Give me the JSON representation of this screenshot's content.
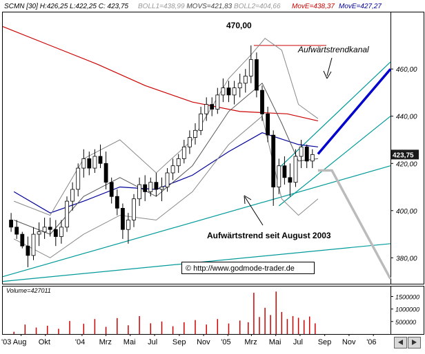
{
  "chart_data": {
    "type": "line",
    "header": {
      "symbol": "SCMN [30]",
      "stats": "H:426,25 L:422,25 C: 423,75",
      "boll1": "BOLL1=438,99",
      "movs": "MOVS=421,83",
      "boll2": "BOLL2=404,66",
      "move_red": "MovE=438,37",
      "move_blue": "MovE=427,27"
    },
    "price_axis": {
      "ticks": [
        380,
        400,
        420,
        440,
        460
      ],
      "labels": [
        "380,00",
        "400,00",
        "420,00",
        "440,00",
        "460,00"
      ],
      "range": [
        369,
        484
      ]
    },
    "last_price_label": "423,75",
    "x_axis": {
      "labels": [
        "'03 Aug",
        "Okt",
        "'04",
        "Mrz",
        "Mai",
        "Jul",
        "Sep",
        "Nov",
        "'05",
        "Mrz",
        "Mai",
        "Jul",
        "Sep",
        "Nov",
        "'06"
      ],
      "range": [
        "2003-06-16",
        "2006-02-13"
      ]
    },
    "volume": {
      "label": "Volume=427011",
      "ticks": [
        "1500000",
        "1000000",
        "500000"
      ],
      "range": [
        0,
        1900000
      ]
    },
    "annotations": {
      "high": "470,00",
      "channel": "Aufwärtstrendkanal",
      "trend": "Aufwärtstrend seit August 2003",
      "copyright": "© http://www.godmode-trader.de"
    },
    "colors": {
      "candle_up": "#ffffff",
      "candle_down": "#000000",
      "move_red": "#cc0000",
      "move_blue": "#000099",
      "bollinger": "#888888",
      "trendline": "#009999",
      "forecast_up": "#0000cc",
      "forecast_down": "#bbbbbb",
      "volume": "#cc0000",
      "high_line": "#cc0000"
    },
    "series": [
      {
        "name": "SCMN [30]",
        "type": "candlestick",
        "points": [
          [
            "2003-07-07",
            396,
            399,
            391,
            393
          ],
          [
            "2003-07-21",
            393,
            396,
            388,
            390
          ],
          [
            "2003-08-04",
            390,
            391,
            384,
            385
          ],
          [
            "2003-08-18",
            385,
            389,
            376,
            381
          ],
          [
            "2003-09-01",
            381,
            393,
            379,
            390
          ],
          [
            "2003-09-15",
            390,
            395,
            385,
            391
          ],
          [
            "2003-09-29",
            391,
            397,
            388,
            393
          ],
          [
            "2003-10-13",
            393,
            397,
            389,
            392
          ],
          [
            "2003-10-27",
            392,
            396,
            385,
            389
          ],
          [
            "2003-11-10",
            389,
            396,
            386,
            393
          ],
          [
            "2003-11-24",
            393,
            406,
            391,
            404
          ],
          [
            "2003-12-08",
            404,
            412,
            400,
            409
          ],
          [
            "2003-12-22",
            409,
            420,
            406,
            418
          ],
          [
            "2004-01-05",
            418,
            426,
            414,
            422
          ],
          [
            "2004-01-19",
            422,
            425,
            415,
            418
          ],
          [
            "2004-02-02",
            418,
            426,
            416,
            423
          ],
          [
            "2004-02-16",
            423,
            428,
            418,
            420
          ],
          [
            "2004-03-01",
            420,
            425,
            409,
            412
          ],
          [
            "2004-03-15",
            412,
            414,
            403,
            406
          ],
          [
            "2004-03-29",
            406,
            409,
            398,
            401
          ],
          [
            "2004-04-12",
            401,
            403,
            388,
            392
          ],
          [
            "2004-04-26",
            392,
            399,
            386,
            396
          ],
          [
            "2004-05-10",
            396,
            407,
            393,
            405
          ],
          [
            "2004-05-24",
            405,
            414,
            402,
            411
          ],
          [
            "2004-06-07",
            411,
            415,
            404,
            408
          ],
          [
            "2004-06-21",
            408,
            414,
            406,
            412
          ],
          [
            "2004-07-05",
            412,
            416,
            406,
            409
          ],
          [
            "2004-07-19",
            409,
            414,
            404,
            410
          ],
          [
            "2004-08-02",
            410,
            418,
            408,
            416
          ],
          [
            "2004-08-16",
            416,
            422,
            413,
            419
          ],
          [
            "2004-08-30",
            419,
            424,
            416,
            422
          ],
          [
            "2004-09-13",
            422,
            430,
            420,
            427
          ],
          [
            "2004-09-27",
            427,
            434,
            424,
            431
          ],
          [
            "2004-10-11",
            431,
            437,
            428,
            434
          ],
          [
            "2004-10-25",
            434,
            444,
            432,
            441
          ],
          [
            "2004-11-08",
            441,
            448,
            438,
            445
          ],
          [
            "2004-11-22",
            445,
            448,
            440,
            443
          ],
          [
            "2004-12-06",
            443,
            452,
            441,
            449
          ],
          [
            "2004-12-20",
            449,
            456,
            446,
            452
          ],
          [
            "2005-01-03",
            452,
            455,
            446,
            449
          ],
          [
            "2005-01-17",
            449,
            455,
            445,
            452
          ],
          [
            "2005-01-31",
            452,
            458,
            448,
            454
          ],
          [
            "2005-02-14",
            454,
            460,
            450,
            457
          ],
          [
            "2005-02-28",
            457,
            470,
            454,
            464
          ],
          [
            "2005-03-14",
            464,
            467,
            448,
            451
          ],
          [
            "2005-03-28",
            451,
            453,
            438,
            441
          ],
          [
            "2005-04-11",
            441,
            444,
            429,
            432
          ],
          [
            "2005-04-25",
            432,
            434,
            402,
            410
          ],
          [
            "2005-05-09",
            410,
            422,
            407,
            419
          ],
          [
            "2005-05-23",
            419,
            423,
            411,
            414
          ],
          [
            "2005-06-06",
            414,
            420,
            406,
            412
          ],
          [
            "2005-06-20",
            412,
            426,
            410,
            423
          ],
          [
            "2005-07-04",
            423,
            430,
            418,
            427
          ],
          [
            "2005-07-18",
            427,
            428,
            418,
            421
          ],
          [
            "2005-08-01",
            421,
            426,
            418,
            423.75
          ]
        ]
      },
      {
        "name": "MovE=438,37",
        "points": [
          [
            "2003-06-16",
            478
          ],
          [
            "2003-10-13",
            470
          ],
          [
            "2004-02-09",
            462
          ],
          [
            "2004-06-07",
            453
          ],
          [
            "2004-10-04",
            446
          ],
          [
            "2005-01-31",
            442
          ],
          [
            "2005-05-30",
            441
          ],
          [
            "2005-08-15",
            438
          ]
        ]
      },
      {
        "name": "MovE=427,27",
        "points": [
          [
            "2003-07-14",
            408
          ],
          [
            "2003-10-13",
            399
          ],
          [
            "2004-01-05",
            404
          ],
          [
            "2004-04-05",
            410
          ],
          [
            "2004-07-05",
            409
          ],
          [
            "2004-10-04",
            415
          ],
          [
            "2005-01-03",
            425
          ],
          [
            "2005-03-28",
            433
          ],
          [
            "2005-06-27",
            428
          ],
          [
            "2005-08-15",
            427
          ]
        ]
      },
      {
        "name": "BOLL1=438,99",
        "points": [
          [
            "2003-07-14",
            404
          ],
          [
            "2003-10-13",
            398
          ],
          [
            "2004-01-05",
            422
          ],
          [
            "2004-04-05",
            430
          ],
          [
            "2004-07-05",
            416
          ],
          [
            "2004-10-04",
            430
          ],
          [
            "2005-01-03",
            456
          ],
          [
            "2005-02-28",
            466
          ],
          [
            "2005-04-04",
            473
          ],
          [
            "2005-05-16",
            468
          ],
          [
            "2005-06-27",
            445
          ],
          [
            "2005-08-15",
            439
          ]
        ]
      },
      {
        "name": "MOVS=421,83",
        "points": [
          [
            "2003-07-14",
            396
          ],
          [
            "2003-10-13",
            390
          ],
          [
            "2004-01-05",
            406
          ],
          [
            "2004-04-05",
            414
          ],
          [
            "2004-07-05",
            406
          ],
          [
            "2004-10-04",
            419
          ],
          [
            "2005-01-03",
            442
          ],
          [
            "2005-03-28",
            454
          ],
          [
            "2005-05-16",
            437
          ],
          [
            "2005-06-27",
            421
          ],
          [
            "2005-08-15",
            422
          ]
        ]
      },
      {
        "name": "BOLL2=404,66",
        "points": [
          [
            "2003-07-14",
            388
          ],
          [
            "2003-10-13",
            380
          ],
          [
            "2004-01-05",
            390
          ],
          [
            "2004-04-05",
            398
          ],
          [
            "2004-07-05",
            396
          ],
          [
            "2004-10-04",
            408
          ],
          [
            "2005-01-03",
            428
          ],
          [
            "2005-03-28",
            440
          ],
          [
            "2005-05-16",
            405
          ],
          [
            "2005-06-27",
            398
          ],
          [
            "2005-08-15",
            405
          ]
        ]
      }
    ],
    "volume_values": [
      [
        "2003-07-14",
        90000
      ],
      [
        "2003-08-11",
        380000
      ],
      [
        "2003-09-08",
        260000
      ],
      [
        "2003-10-06",
        330000
      ],
      [
        "2003-11-03",
        210000
      ],
      [
        "2003-12-01",
        520000
      ],
      [
        "2004-01-05",
        410000
      ],
      [
        "2004-02-02",
        600000
      ],
      [
        "2004-03-01",
        290000
      ],
      [
        "2004-03-29",
        640000
      ],
      [
        "2004-04-26",
        350000
      ],
      [
        "2004-05-24",
        720000
      ],
      [
        "2004-06-21",
        430000
      ],
      [
        "2004-07-19",
        500000
      ],
      [
        "2004-08-16",
        310000
      ],
      [
        "2004-09-13",
        470000
      ],
      [
        "2004-10-11",
        560000
      ],
      [
        "2004-11-08",
        380000
      ],
      [
        "2004-12-06",
        600000
      ],
      [
        "2005-01-03",
        420000
      ],
      [
        "2005-01-31",
        540000
      ],
      [
        "2005-02-21",
        470000
      ],
      [
        "2005-03-07",
        1650000
      ],
      [
        "2005-03-21",
        680000
      ],
      [
        "2005-04-04",
        1050000
      ],
      [
        "2005-04-18",
        760000
      ],
      [
        "2005-05-02",
        1700000
      ],
      [
        "2005-05-16",
        880000
      ],
      [
        "2005-05-30",
        600000
      ],
      [
        "2005-06-13",
        720000
      ],
      [
        "2005-06-27",
        650000
      ],
      [
        "2005-07-11",
        560000
      ],
      [
        "2005-07-25",
        700000
      ],
      [
        "2005-08-08",
        427011
      ]
    ]
  }
}
